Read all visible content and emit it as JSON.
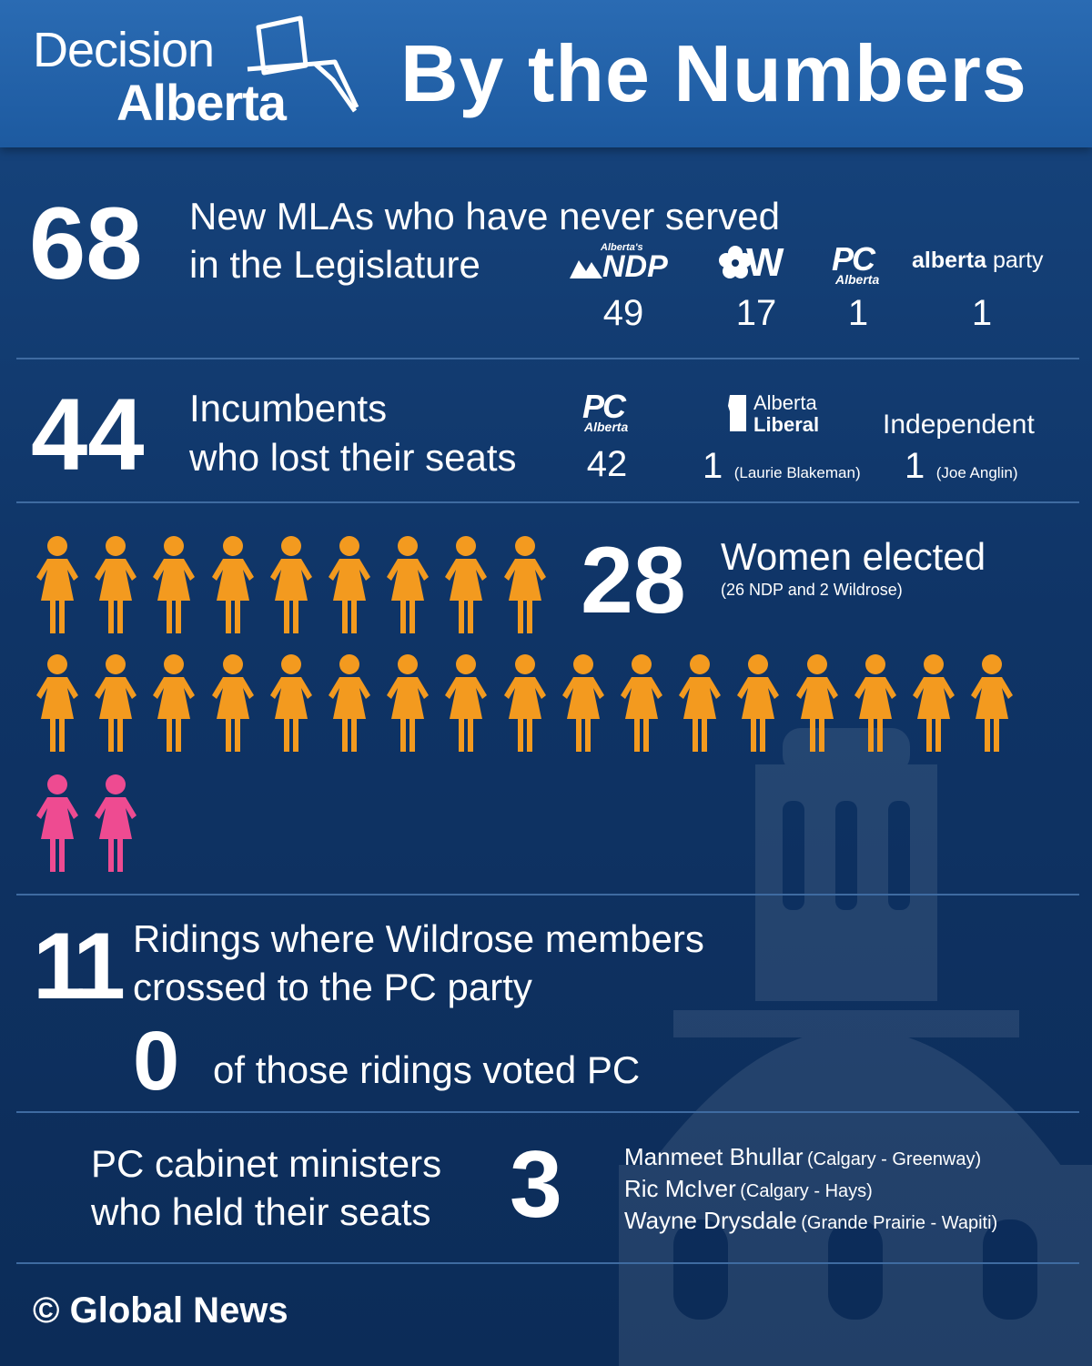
{
  "header": {
    "logo_line1": "Decision",
    "logo_line2": "Alberta",
    "title": "By the Numbers"
  },
  "new_mlas": {
    "number": "68",
    "line1": "New MLAs who have never served",
    "line2": "in the Legislature",
    "parties": [
      {
        "logo_small": "Alberta's",
        "logo": "NDP",
        "count": "49"
      },
      {
        "logo": "W",
        "count": "17"
      },
      {
        "logo": "PC",
        "logo_sub": "Alberta",
        "count": "1"
      },
      {
        "logo_bold": "alberta",
        "logo_light": "party",
        "count": "1"
      }
    ]
  },
  "incumbents": {
    "number": "44",
    "line1": "Incumbents",
    "line2": "who lost their seats",
    "parties": [
      {
        "logo": "PC",
        "logo_sub": "Alberta",
        "count": "42"
      },
      {
        "logo_line1": "Alberta",
        "logo_line2": "Liberal",
        "count": "1",
        "note": "(Laurie Blakeman)"
      },
      {
        "label": "Independent",
        "count": "1",
        "note": "(Joe Anglin)"
      }
    ]
  },
  "women": {
    "number": "28",
    "label": "Women elected",
    "note": "(26 NDP and 2 Wildrose)",
    "ndp_count": 26,
    "wildrose_count": 2,
    "colors": {
      "ndp": "#f39a1f",
      "wildrose": "#ee4b91"
    }
  },
  "ridings": {
    "number": "11",
    "line1": "Ridings where Wildrose members",
    "line2": "crossed to the PC party",
    "zero_number": "0",
    "zero_text": "of those ridings voted PC"
  },
  "ministers": {
    "line1": "PC cabinet ministers",
    "line2": "who held their seats",
    "number": "3",
    "list": [
      {
        "name": "Manmeet Bhullar",
        "riding": "(Calgary - Greenway)"
      },
      {
        "name": "Ric McIver",
        "riding": "(Calgary - Hays)"
      },
      {
        "name": "Wayne Drysdale",
        "riding": "(Grande Prairie - Wapiti)"
      }
    ]
  },
  "footer": {
    "copyright": "©",
    "source": "Global News"
  },
  "colors": {
    "background": "#0f3466",
    "header": "#2262a8",
    "divider": "#3f6ba1"
  }
}
